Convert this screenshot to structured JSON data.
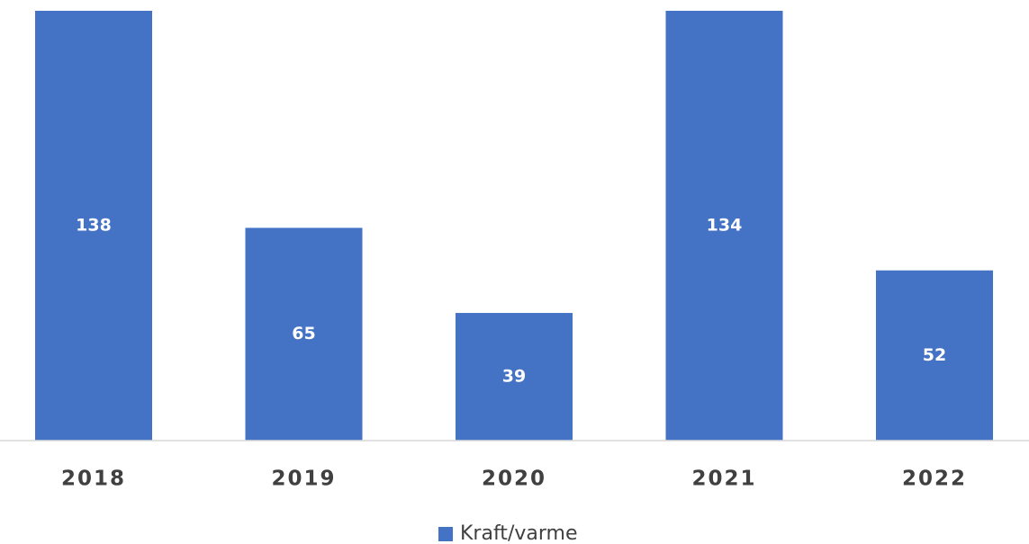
{
  "chart_data": {
    "type": "bar",
    "categories": [
      "2018",
      "2019",
      "2020",
      "2021",
      "2022"
    ],
    "series": [
      {
        "name": "Kraft/varme",
        "color": "#4472c4",
        "values": [
          138,
          65,
          39,
          134,
          52
        ]
      }
    ]
  }
}
